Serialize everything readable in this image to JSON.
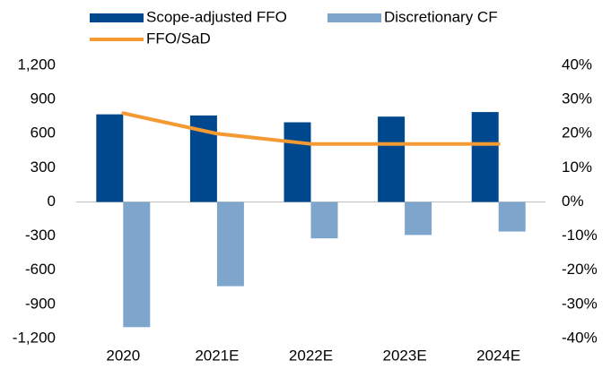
{
  "chart_data": {
    "type": "bar",
    "categories": [
      "2020",
      "2021E",
      "2022E",
      "2023E",
      "2024E"
    ],
    "series": [
      {
        "name": "Scope-adjusted FFO",
        "color": "#00488d",
        "values": [
          770,
          760,
          700,
          750,
          790
        ]
      },
      {
        "name": "Discretionary CF",
        "color": "#7ea6cc",
        "values": [
          -1100,
          -740,
          -320,
          -290,
          -260
        ]
      },
      {
        "name": "FFO/SaD",
        "type": "line",
        "axis": "y2",
        "color": "#f39a32",
        "values": [
          26,
          20,
          17,
          17,
          17
        ]
      }
    ],
    "ylim": [
      -1200,
      1200
    ],
    "yticks": [
      {
        "value": -1200,
        "label": "-1,200"
      },
      -900,
      -600,
      -300,
      0,
      300,
      600,
      900,
      {
        "value": 1200,
        "label": "1,200"
      }
    ],
    "y2lim": [
      -40,
      40
    ],
    "y2ticks": [
      {
        "value": -40,
        "label": "-40%"
      },
      {
        "value": -30,
        "label": "-30%"
      },
      {
        "value": -20,
        "label": "-20%"
      },
      {
        "value": -10,
        "label": "-10%"
      },
      {
        "value": 0,
        "label": "0%"
      },
      {
        "value": 10,
        "label": "10%"
      },
      {
        "value": 20,
        "label": "20%"
      },
      {
        "value": 30,
        "label": "30%"
      },
      {
        "value": 40,
        "label": "40%"
      }
    ],
    "legend": "top",
    "grid": false
  }
}
